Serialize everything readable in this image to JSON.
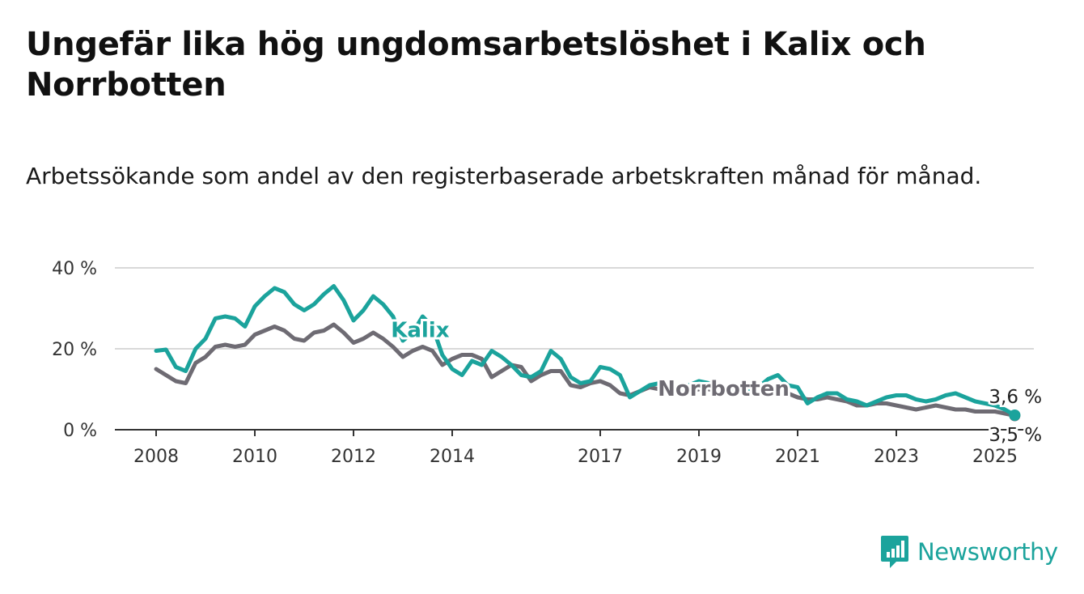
{
  "title": "Ungefär lika hög ungdomsarbetslöshet i Kalix och Norrbotten",
  "subtitle": "Arbetssökande som andel av den registerbaserade arbetskraften månad för månad.",
  "brand": {
    "name": "Newsworthy",
    "icon": "newsworthy-logo-icon",
    "color": "#1ba39c"
  },
  "chart_data": {
    "type": "line",
    "title": "Ungefär lika hög ungdomsarbetslöshet i Kalix och Norrbotten",
    "subtitle": "Arbetssökande som andel av den registerbaserade arbetskraften månad för månad.",
    "xlim": [
      2008,
      2025.6
    ],
    "ylim": [
      0,
      40
    ],
    "x_ticks": [
      2008,
      2010,
      2012,
      2014,
      2017,
      2019,
      2021,
      2023,
      2025
    ],
    "x_tick_labels": [
      "2008",
      "2010",
      "2012",
      "2014",
      "2017",
      "2019",
      "2021",
      "2023",
      "2025"
    ],
    "y_ticks": [
      0,
      20,
      40
    ],
    "y_tick_labels": [
      "0 %",
      "20 %",
      "40 %"
    ],
    "grid": true,
    "legend": "direct-labels",
    "series": [
      {
        "name": "Kalix",
        "color": "#1ba39c",
        "label_at": [
          2013.35,
          22.9
        ],
        "end_label": "3,6 %",
        "x": [
          2008.0,
          2008.2,
          2008.4,
          2008.6,
          2008.8,
          2009.0,
          2009.2,
          2009.4,
          2009.6,
          2009.8,
          2010.0,
          2010.2,
          2010.4,
          2010.6,
          2010.8,
          2011.0,
          2011.2,
          2011.4,
          2011.6,
          2011.8,
          2012.0,
          2012.2,
          2012.4,
          2012.6,
          2012.8,
          2013.0,
          2013.2,
          2013.4,
          2013.6,
          2013.8,
          2014.0,
          2014.2,
          2014.4,
          2014.6,
          2014.8,
          2015.0,
          2015.2,
          2015.4,
          2015.6,
          2015.8,
          2016.0,
          2016.2,
          2016.4,
          2016.6,
          2016.8,
          2017.0,
          2017.2,
          2017.4,
          2017.6,
          2017.8,
          2018.0,
          2018.2,
          2018.4,
          2018.6,
          2018.8,
          2019.0,
          2019.2,
          2019.4,
          2019.6,
          2019.8,
          2020.0,
          2020.2,
          2020.4,
          2020.6,
          2020.8,
          2021.0,
          2021.2,
          2021.4,
          2021.6,
          2021.8,
          2022.0,
          2022.2,
          2022.4,
          2022.6,
          2022.8,
          2023.0,
          2023.2,
          2023.4,
          2023.6,
          2023.8,
          2024.0,
          2024.2,
          2024.4,
          2024.6,
          2024.8,
          2025.0,
          2025.2,
          2025.4
        ],
        "y": [
          19.5,
          19.8,
          15.5,
          14.5,
          20.0,
          22.5,
          27.5,
          28.0,
          27.5,
          25.5,
          30.5,
          33.0,
          35.0,
          34.0,
          31.0,
          29.5,
          31.0,
          33.5,
          35.5,
          32.0,
          27.0,
          29.5,
          33.0,
          31.0,
          28.0,
          22.0,
          24.0,
          28.0,
          25.5,
          18.5,
          15.0,
          13.5,
          17.0,
          16.0,
          19.5,
          18.0,
          16.0,
          13.5,
          13.0,
          14.5,
          19.5,
          17.5,
          13.0,
          11.5,
          12.0,
          15.5,
          15.0,
          13.5,
          8.0,
          9.5,
          11.0,
          11.5,
          11.0,
          9.5,
          11.0,
          12.0,
          11.5,
          10.0,
          9.0,
          10.5,
          10.0,
          10.5,
          12.5,
          13.5,
          11.0,
          10.5,
          6.5,
          8.0,
          9.0,
          9.0,
          7.5,
          7.0,
          6.0,
          7.0,
          8.0,
          8.5,
          8.5,
          7.5,
          7.0,
          7.5,
          8.5,
          9.0,
          8.0,
          7.0,
          6.5,
          6.0,
          5.0,
          3.6
        ]
      },
      {
        "name": "Norrbotten",
        "color": "#6e6b73",
        "label_at": [
          2019.5,
          8.4
        ],
        "end_label": "3,5 %",
        "x": [
          2008.0,
          2008.2,
          2008.4,
          2008.6,
          2008.8,
          2009.0,
          2009.2,
          2009.4,
          2009.6,
          2009.8,
          2010.0,
          2010.2,
          2010.4,
          2010.6,
          2010.8,
          2011.0,
          2011.2,
          2011.4,
          2011.6,
          2011.8,
          2012.0,
          2012.2,
          2012.4,
          2012.6,
          2012.8,
          2013.0,
          2013.2,
          2013.4,
          2013.6,
          2013.8,
          2014.0,
          2014.2,
          2014.4,
          2014.6,
          2014.8,
          2015.0,
          2015.2,
          2015.4,
          2015.6,
          2015.8,
          2016.0,
          2016.2,
          2016.4,
          2016.6,
          2016.8,
          2017.0,
          2017.2,
          2017.4,
          2017.6,
          2017.8,
          2018.0,
          2018.2,
          2018.4,
          2018.6,
          2018.8,
          2019.0,
          2019.2,
          2019.4,
          2019.6,
          2019.8,
          2020.0,
          2020.2,
          2020.4,
          2020.6,
          2020.8,
          2021.0,
          2021.2,
          2021.4,
          2021.6,
          2021.8,
          2022.0,
          2022.2,
          2022.4,
          2022.6,
          2022.8,
          2023.0,
          2023.2,
          2023.4,
          2023.6,
          2023.8,
          2024.0,
          2024.2,
          2024.4,
          2024.6,
          2024.8,
          2025.0,
          2025.2,
          2025.4
        ],
        "y": [
          15.0,
          13.5,
          12.0,
          11.5,
          16.5,
          18.0,
          20.5,
          21.0,
          20.5,
          21.0,
          23.5,
          24.5,
          25.5,
          24.5,
          22.5,
          22.0,
          24.0,
          24.5,
          26.0,
          24.0,
          21.5,
          22.5,
          24.0,
          22.5,
          20.5,
          18.0,
          19.5,
          20.5,
          19.5,
          16.0,
          17.5,
          18.5,
          18.5,
          17.5,
          13.0,
          14.5,
          16.0,
          15.5,
          12.0,
          13.5,
          14.5,
          14.5,
          11.0,
          10.5,
          11.5,
          12.0,
          11.0,
          9.0,
          8.5,
          9.5,
          10.5,
          10.0,
          9.5,
          9.0,
          9.5,
          10.0,
          10.0,
          9.5,
          9.0,
          10.0,
          10.5,
          10.5,
          11.0,
          10.0,
          9.0,
          8.0,
          7.5,
          7.5,
          8.0,
          7.5,
          7.0,
          6.0,
          6.0,
          6.5,
          6.5,
          6.0,
          5.5,
          5.0,
          5.5,
          6.0,
          5.5,
          5.0,
          5.0,
          4.5,
          4.5,
          4.5,
          4.0,
          3.5
        ]
      }
    ]
  }
}
